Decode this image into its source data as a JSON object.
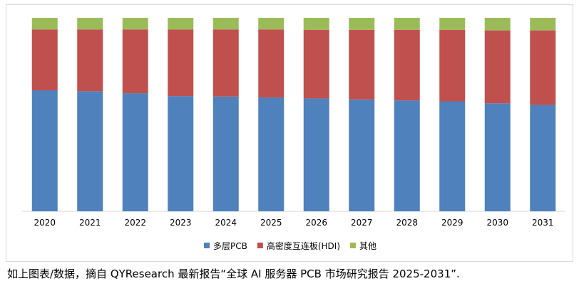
{
  "chart_data": {
    "type": "bar",
    "stacked": true,
    "percent": true,
    "categories": [
      "2020",
      "2021",
      "2022",
      "2023",
      "2024",
      "2025",
      "2026",
      "2027",
      "2028",
      "2029",
      "2030",
      "2031"
    ],
    "series": [
      {
        "name": "多层PCB",
        "color": "#4f81bd",
        "values": [
          62.5,
          62.0,
          61.0,
          59.5,
          59.3,
          58.8,
          58.3,
          57.8,
          57.3,
          56.8,
          55.8,
          55.0
        ]
      },
      {
        "name": "高密度互连板(HDI)",
        "color": "#c0504d",
        "values": [
          31.5,
          32.0,
          33.0,
          34.5,
          34.7,
          35.2,
          35.5,
          36.0,
          36.5,
          37.0,
          37.7,
          38.5
        ]
      },
      {
        "name": "其他",
        "color": "#9bbb59",
        "values": [
          6.0,
          6.0,
          6.0,
          6.0,
          6.0,
          6.0,
          6.2,
          6.2,
          6.2,
          6.2,
          6.5,
          6.5
        ]
      }
    ],
    "ylim": [
      0,
      100
    ],
    "title": "",
    "xlabel": "",
    "ylabel": "",
    "legend_position": "bottom"
  },
  "caption": "如上图表/数据，摘自 QYResearch 最新报告“全球 AI 服务器 PCB 市场研究报告 2025-2031”."
}
